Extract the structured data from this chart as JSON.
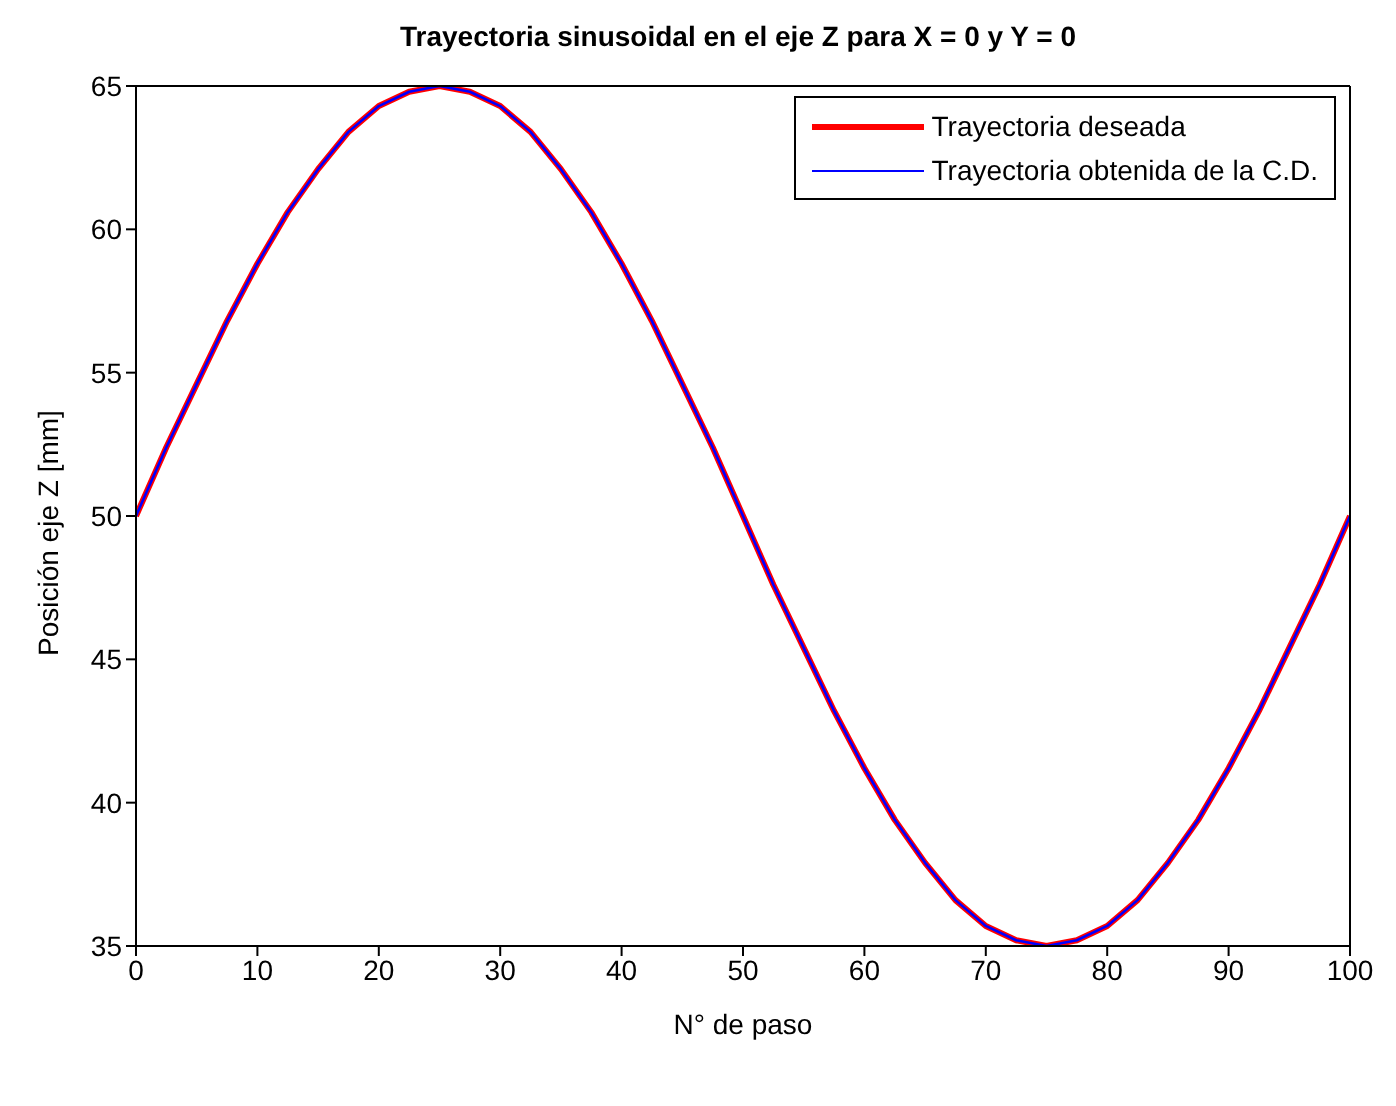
{
  "chart_data": {
    "type": "line",
    "title": "Trayectoria sinusoidal en el eje Z para X = 0 y Y = 0",
    "xlabel": "N° de paso",
    "ylabel": "Posición eje Z [mm]",
    "x": [
      0,
      2.5,
      5,
      7.5,
      10,
      12.5,
      15,
      17.5,
      20,
      22.5,
      25,
      27.5,
      30,
      32.5,
      35,
      37.5,
      40,
      42.5,
      45,
      47.5,
      50,
      52.5,
      55,
      57.5,
      60,
      62.5,
      65,
      67.5,
      70,
      72.5,
      75,
      77.5,
      80,
      82.5,
      85,
      87.5,
      90,
      92.5,
      95,
      97.5,
      100
    ],
    "series": [
      {
        "name": "Trayectoria deseada",
        "color": "#ff0000",
        "values": [
          50,
          52.4,
          54.6,
          56.8,
          58.8,
          60.6,
          62.1,
          63.4,
          64.3,
          64.8,
          65,
          64.8,
          64.3,
          63.4,
          62.1,
          60.6,
          58.8,
          56.8,
          54.6,
          52.4,
          50,
          47.6,
          45.4,
          43.2,
          41.2,
          39.4,
          37.9,
          36.6,
          35.7,
          35.2,
          35,
          35.2,
          35.7,
          36.6,
          37.9,
          39.4,
          41.2,
          43.2,
          45.4,
          47.6,
          50
        ]
      },
      {
        "name": "Trayectoria obtenida de la C.D.",
        "color": "#0000ff",
        "values": [
          50,
          52.4,
          54.6,
          56.8,
          58.8,
          60.6,
          62.1,
          63.4,
          64.3,
          64.8,
          65,
          64.8,
          64.3,
          63.4,
          62.1,
          60.6,
          58.8,
          56.8,
          54.6,
          52.4,
          50,
          47.6,
          45.4,
          43.2,
          41.2,
          39.4,
          37.9,
          36.6,
          35.7,
          35.2,
          35,
          35.2,
          35.7,
          36.6,
          37.9,
          39.4,
          41.2,
          43.2,
          45.4,
          47.6,
          50
        ]
      }
    ],
    "xlim": [
      0,
      100
    ],
    "xticks": [
      0,
      10,
      20,
      30,
      40,
      50,
      60,
      70,
      80,
      90,
      100
    ],
    "ylim": [
      35,
      65
    ],
    "yticks": [
      35,
      40,
      45,
      50,
      55,
      60,
      65
    ],
    "grid": false,
    "legend": "top right",
    "marker": "none",
    "line_style": "solid"
  }
}
